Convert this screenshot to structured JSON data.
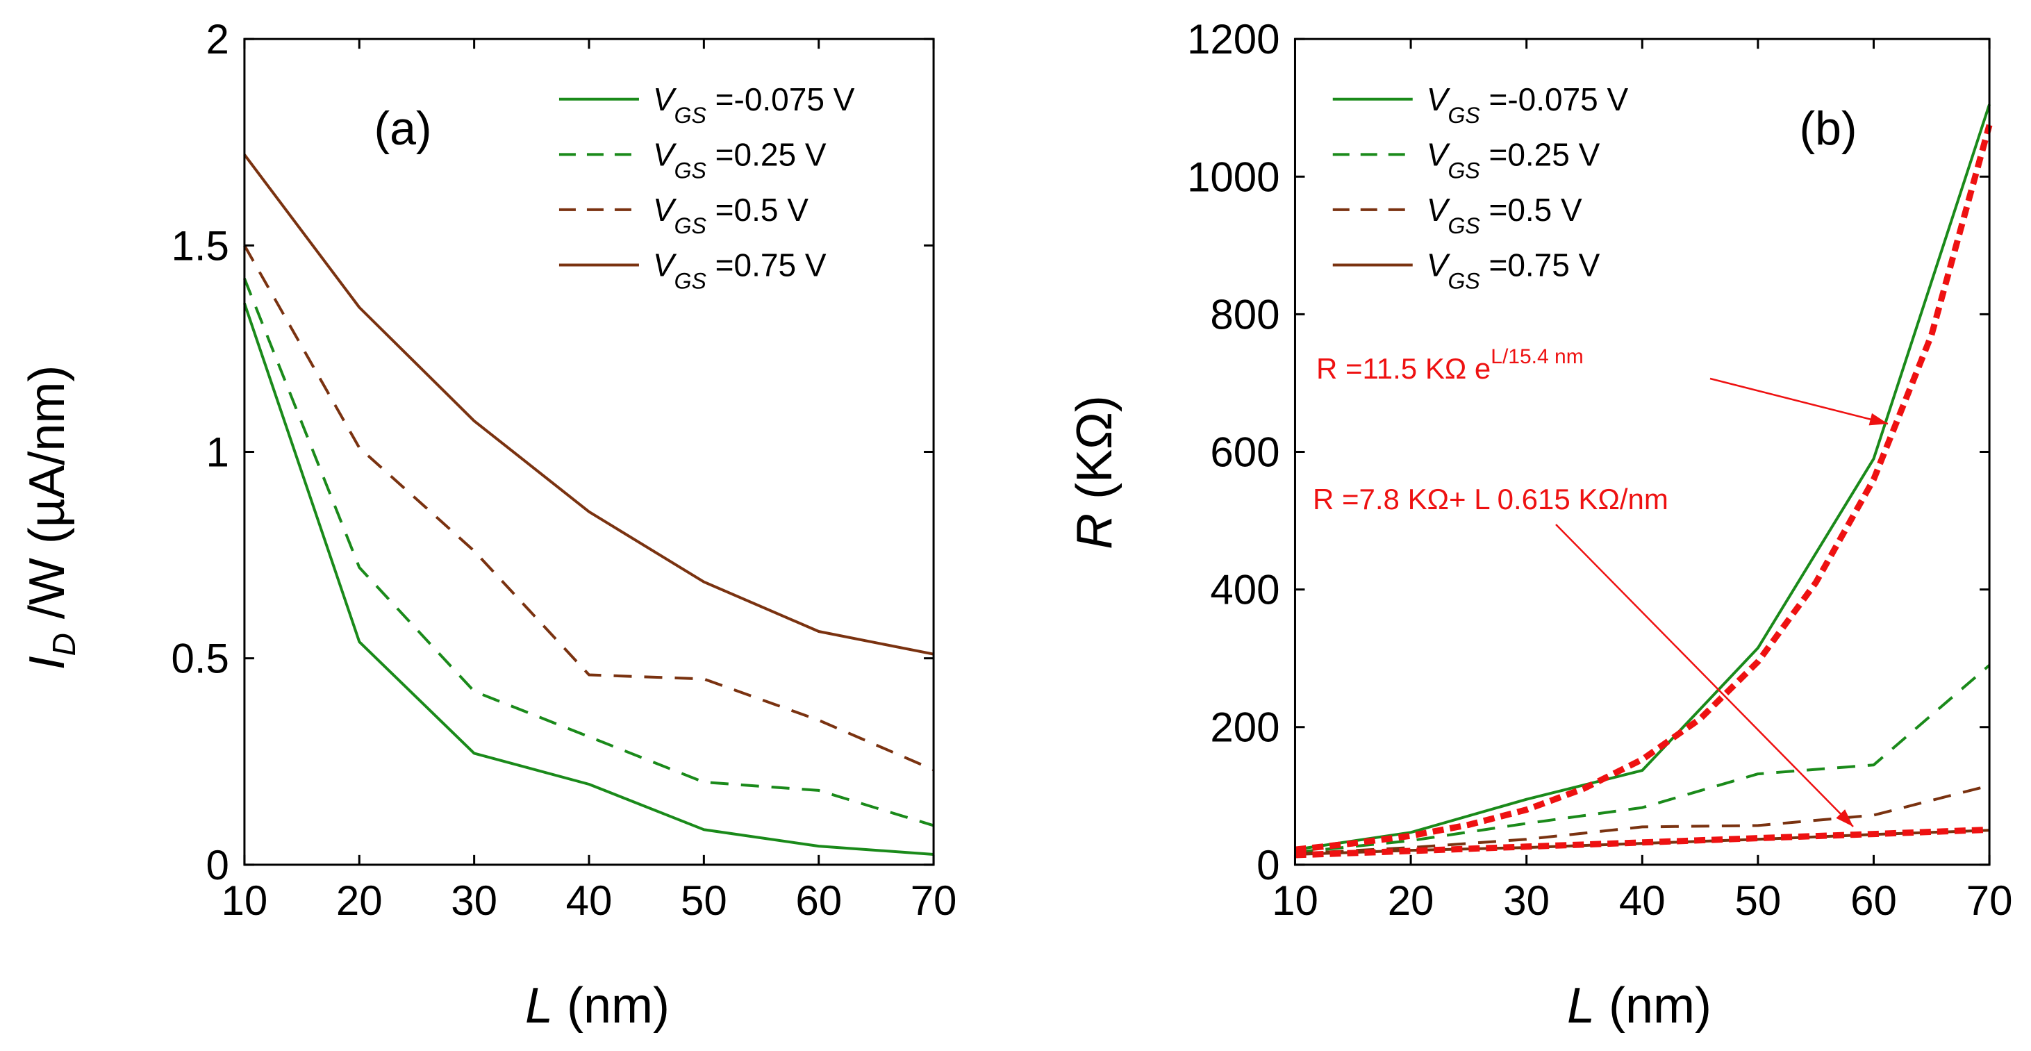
{
  "chart_data": [
    {
      "type": "line",
      "panel_label": "(a)",
      "ylabel": {
        "prefix": "I",
        "sub": "D",
        "rest": " /W (µA/nm)"
      },
      "xlabel": {
        "prefix": "L",
        "rest": "  (nm)"
      },
      "xlim": [
        10,
        70
      ],
      "ylim": [
        0,
        2
      ],
      "xticks": [
        "10",
        "20",
        "30",
        "40",
        "50",
        "60",
        "70"
      ],
      "yticks": [
        "0",
        "0.5",
        "1",
        "1.5",
        "2"
      ],
      "x": [
        10,
        20,
        30,
        40,
        50,
        60,
        70
      ],
      "legend_position": "top-right",
      "series": [
        {
          "name": "VGS=-0.075 V",
          "legend_rest": " =-0.075 V",
          "color": "#1a8a1a",
          "dash": "solid",
          "values": [
            1.36,
            0.54,
            0.27,
            0.195,
            0.085,
            0.045,
            0.025
          ]
        },
        {
          "name": "VGS=0.25 V",
          "legend_rest": " =0.25 V",
          "color": "#1a8a1a",
          "dash": "dashed",
          "values": [
            1.42,
            0.72,
            0.42,
            0.31,
            0.2,
            0.18,
            0.095
          ]
        },
        {
          "name": "VGS=0.5 V",
          "legend_rest": " =0.5 V",
          "color": "#7a3210",
          "dash": "dashed",
          "values": [
            1.5,
            1.01,
            0.76,
            0.46,
            0.45,
            0.35,
            0.23
          ]
        },
        {
          "name": "VGS=0.75 V",
          "legend_rest": " =0.75 V",
          "color": "#7a3210",
          "dash": "solid",
          "values": [
            1.72,
            1.35,
            1.075,
            0.855,
            0.685,
            0.565,
            0.51
          ]
        }
      ]
    },
    {
      "type": "line",
      "panel_label": "(b)",
      "ylabel": {
        "prefix": "R",
        "rest": " (KΩ)"
      },
      "xlabel": {
        "prefix": "L",
        "rest": "  (nm)"
      },
      "xlim": [
        10,
        70
      ],
      "ylim": [
        0,
        1200
      ],
      "xticks": [
        "10",
        "20",
        "30",
        "40",
        "50",
        "60",
        "70"
      ],
      "yticks": [
        "0",
        "200",
        "400",
        "600",
        "800",
        "1000",
        "1200"
      ],
      "x": [
        10,
        20,
        30,
        40,
        50,
        60,
        70
      ],
      "legend_position": "top-left",
      "series": [
        {
          "name": "VGS=-0.075 V",
          "legend_rest": " =-0.075 V",
          "color": "#1a8a1a",
          "dash": "solid",
          "values": [
            22,
            47,
            95,
            137,
            315,
            590,
            1105
          ]
        },
        {
          "name": "VGS=0.25 V",
          "legend_rest": " =0.25 V",
          "color": "#1a8a1a",
          "dash": "dashed",
          "values": [
            18,
            35,
            60,
            83,
            132,
            145,
            290
          ]
        },
        {
          "name": "VGS=0.5 V",
          "legend_rest": " =0.5 V",
          "color": "#7a3210",
          "dash": "dashed",
          "values": [
            16,
            25,
            37,
            55,
            57,
            72,
            115
          ]
        },
        {
          "name": "VGS=0.75 V",
          "legend_rest": " =0.75 V",
          "color": "#7a3210",
          "dash": "solid",
          "values": [
            15,
            21,
            25,
            31,
            37,
            44,
            50
          ]
        }
      ],
      "fits": [
        {
          "name": "exponential fit",
          "formula": "R = 11.5 KΩ e^(L/15.4 nm)",
          "color": "#ee1111",
          "text_pre": "R =11.5 KΩ  e",
          "text_sup": "L/15.4 nm",
          "x": [
            10,
            15,
            20,
            25,
            30,
            35,
            40,
            45,
            50,
            55,
            60,
            65,
            70
          ],
          "values": [
            22,
            31,
            42,
            58,
            80,
            111,
            153,
            212,
            295,
            410,
            560,
            770,
            1075
          ]
        },
        {
          "name": "linear fit",
          "formula": "R = 7.8 KΩ + L 0.615 KΩ/nm",
          "color": "#ee1111",
          "text_pre": "R =7.8 KΩ+ L  0.615 KΩ/nm",
          "x": [
            10,
            20,
            30,
            40,
            50,
            60,
            70
          ],
          "values": [
            14,
            20,
            26.3,
            32.4,
            38.6,
            44.7,
            50.9
          ]
        }
      ]
    }
  ]
}
